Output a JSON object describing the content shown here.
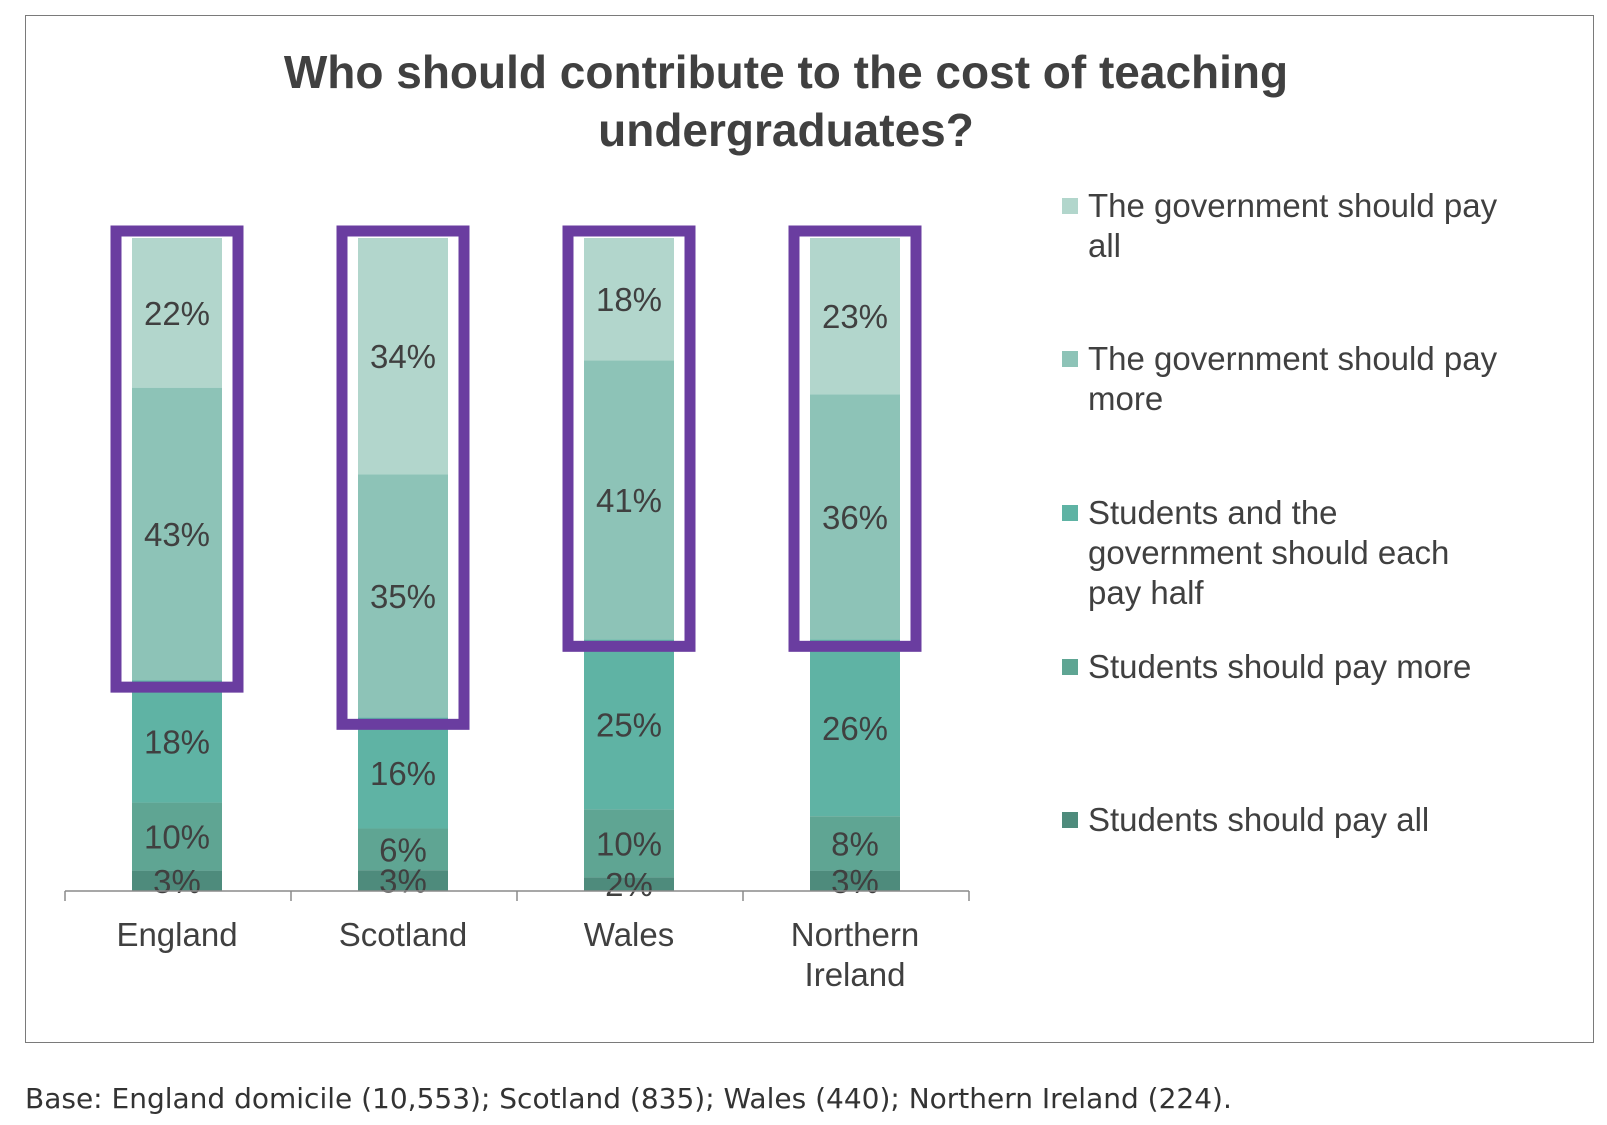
{
  "chart_data": {
    "type": "bar",
    "stacked": true,
    "title": "Who should contribute to the cost of teaching undergraduates?",
    "title_lines": [
      "Who should contribute to the cost of teaching",
      "undergraduates?"
    ],
    "categories": [
      "England",
      "Scotland",
      "Wales",
      "Northern Ireland"
    ],
    "category_lines": [
      [
        "England"
      ],
      [
        "Scotland"
      ],
      [
        "Wales"
      ],
      [
        "Northern",
        "Ireland"
      ]
    ],
    "series": [
      {
        "name": "Students should pay all",
        "legend_lines": [
          "Students should pay all"
        ],
        "values": [
          3,
          3,
          2,
          3
        ],
        "labels": [
          "3%",
          "3%",
          "2%",
          "3%"
        ],
        "color": "#4e8b7c"
      },
      {
        "name": "Students should pay more",
        "legend_lines": [
          "Students should pay more"
        ],
        "values": [
          10,
          6,
          10,
          8
        ],
        "labels": [
          "10%",
          "6%",
          "10%",
          "8%"
        ],
        "color": "#5fa593"
      },
      {
        "name": "Students and the government should each pay half",
        "legend_lines": [
          "Students and the",
          "government should each",
          "pay half"
        ],
        "values": [
          18,
          16,
          25,
          26
        ],
        "labels": [
          "18%",
          "16%",
          "25%",
          "26%"
        ],
        "color": "#5fb3a4"
      },
      {
        "name": "The government should pay more",
        "legend_lines": [
          "The government should pay",
          "more"
        ],
        "values": [
          43,
          35,
          41,
          36
        ],
        "labels": [
          "43%",
          "35%",
          "41%",
          "36%"
        ],
        "color": "#8dc3b7"
      },
      {
        "name": "The government should pay all",
        "legend_lines": [
          "The government should pay",
          "all"
        ],
        "values": [
          22,
          34,
          18,
          23
        ],
        "labels": [
          "22%",
          "34%",
          "18%",
          "23%"
        ],
        "color": "#b2d6cc"
      }
    ],
    "highlight": {
      "series_names": [
        "The government should pay more",
        "The government should pay all"
      ],
      "color": "#6a3da0"
    },
    "legend_position": "right",
    "grid": false
  },
  "footnote": "Base: England domicile (10,553); Scotland (835); Wales (440); Northern Ireland (224)."
}
